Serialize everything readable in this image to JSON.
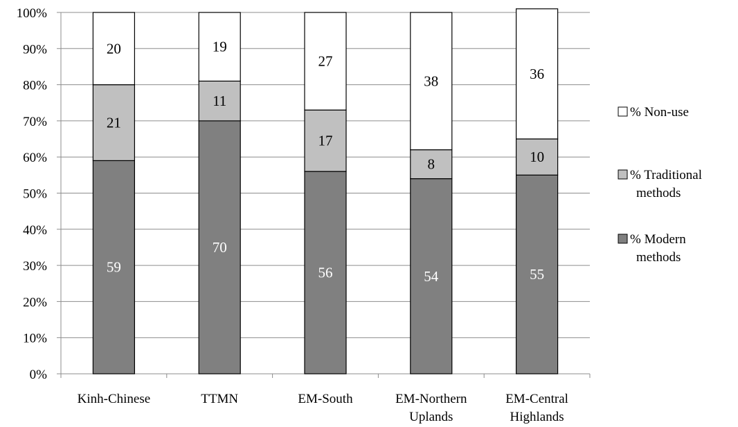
{
  "chart_data": {
    "type": "bar",
    "stacked": true,
    "percent": true,
    "categories": [
      [
        "Kinh-Chinese"
      ],
      [
        "TTMN"
      ],
      [
        "EM-South"
      ],
      [
        "EM-Northern",
        "Uplands"
      ],
      [
        "EM-Central",
        "Highlands"
      ]
    ],
    "series": [
      {
        "name": "% Modern methods",
        "legend_lines": [
          "% Modern",
          "methods"
        ],
        "values": [
          59,
          70,
          56,
          54,
          55
        ],
        "color": "#808080",
        "label_color": "#ffffff"
      },
      {
        "name": "% Traditional methods",
        "legend_lines": [
          "% Traditional",
          "methods"
        ],
        "values": [
          21,
          11,
          17,
          8,
          10
        ],
        "color": "#c0c0c0",
        "label_color": "#000000"
      },
      {
        "name": "% Non-use",
        "legend_lines": [
          "% Non-use"
        ],
        "values": [
          20,
          19,
          27,
          38,
          36
        ],
        "color": "#ffffff",
        "label_color": "#000000"
      }
    ],
    "ylim": [
      0,
      100
    ],
    "yticks": [
      "0%",
      "10%",
      "20%",
      "30%",
      "40%",
      "50%",
      "60%",
      "70%",
      "80%",
      "90%",
      "100%"
    ],
    "grid": true,
    "legend_position": "right",
    "xlabel": "",
    "ylabel": "",
    "title": ""
  }
}
